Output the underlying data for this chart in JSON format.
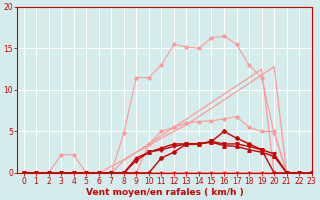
{
  "x": [
    0,
    1,
    2,
    3,
    4,
    5,
    6,
    7,
    8,
    9,
    10,
    11,
    12,
    13,
    14,
    15,
    16,
    17,
    18,
    19,
    20,
    21,
    22,
    23
  ],
  "series": [
    {
      "y": [
        0,
        0,
        0,
        0,
        0,
        0,
        0,
        0,
        0,
        0,
        0,
        0,
        0,
        0,
        0,
        0,
        0,
        0,
        0,
        0,
        0,
        0,
        0,
        0
      ],
      "color": "#ff0000",
      "marker": "o",
      "lw": 1.0,
      "ms": 1.5,
      "zorder": 3
    },
    {
      "y": [
        0,
        0,
        0,
        2.2,
        2.2,
        0,
        0,
        0,
        0,
        0,
        0,
        0,
        0,
        0,
        0,
        0,
        0,
        0,
        0,
        0,
        0,
        0,
        0,
        0
      ],
      "color": "#ff9999",
      "marker": "o",
      "lw": 0.8,
      "ms": 2.0,
      "zorder": 2
    },
    {
      "y": [
        0,
        0,
        0,
        0,
        0,
        0,
        0,
        0,
        4.8,
        11.5,
        11.5,
        13.0,
        15.5,
        15.2,
        15.0,
        16.3,
        16.5,
        15.5,
        13.0,
        11.5,
        4.8,
        0,
        0,
        0
      ],
      "color": "#ff9999",
      "marker": "o",
      "lw": 0.8,
      "ms": 2.0,
      "zorder": 2
    },
    {
      "y": [
        0,
        0,
        0,
        0,
        0,
        0,
        0,
        0,
        0,
        0,
        3.5,
        5.0,
        5.5,
        6.0,
        6.2,
        6.3,
        6.5,
        6.8,
        5.5,
        5.0,
        5.0,
        0,
        0,
        0
      ],
      "color": "#ff9999",
      "marker": "o",
      "lw": 0.8,
      "ms": 2.0,
      "zorder": 2
    },
    {
      "y": [
        0,
        0,
        0,
        0,
        0,
        0,
        0,
        0.8,
        1.6,
        2.5,
        3.3,
        4.2,
        5.0,
        5.8,
        6.8,
        7.8,
        8.8,
        9.8,
        10.8,
        11.8,
        12.8,
        0,
        0,
        0
      ],
      "color": "#ff9999",
      "marker": null,
      "lw": 0.9,
      "ms": 0,
      "zorder": 2
    },
    {
      "y": [
        0,
        0,
        0,
        0,
        0,
        0,
        0,
        0,
        1.5,
        2.5,
        3.5,
        4.5,
        5.5,
        6.5,
        7.5,
        8.5,
        9.5,
        10.5,
        11.5,
        12.5,
        0,
        0,
        0,
        0
      ],
      "color": "#ff9999",
      "marker": null,
      "lw": 0.9,
      "ms": 0,
      "zorder": 2
    },
    {
      "y": [
        0,
        0,
        0,
        0,
        0,
        0,
        0,
        0,
        0,
        1.5,
        2.5,
        2.8,
        3.2,
        3.5,
        3.5,
        3.8,
        3.5,
        3.5,
        3.2,
        2.8,
        2.3,
        0,
        0,
        0
      ],
      "color": "#cc0000",
      "marker": "v",
      "lw": 1.0,
      "ms": 2.5,
      "zorder": 4
    },
    {
      "y": [
        0,
        0,
        0,
        0,
        0,
        0,
        0,
        0,
        0,
        0,
        0,
        1.8,
        2.5,
        3.5,
        3.5,
        3.8,
        5.0,
        4.2,
        3.5,
        2.8,
        0,
        0,
        0,
        0
      ],
      "color": "#cc0000",
      "marker": "P",
      "lw": 1.0,
      "ms": 2.5,
      "zorder": 4
    },
    {
      "y": [
        0,
        0,
        0,
        0,
        0,
        0,
        0,
        0,
        0,
        1.8,
        2.5,
        3.0,
        3.5,
        3.5,
        3.5,
        3.7,
        3.3,
        3.2,
        2.8,
        2.5,
        2.0,
        0,
        0,
        0
      ],
      "color": "#cc0000",
      "marker": "^",
      "lw": 1.0,
      "ms": 2.5,
      "zorder": 4
    }
  ],
  "xlim": [
    -0.5,
    23
  ],
  "ylim": [
    0,
    20
  ],
  "yticks": [
    0,
    5,
    10,
    15,
    20
  ],
  "xticks": [
    0,
    1,
    2,
    3,
    4,
    5,
    6,
    7,
    8,
    9,
    10,
    11,
    12,
    13,
    14,
    15,
    16,
    17,
    18,
    19,
    20,
    21,
    22,
    23
  ],
  "xlabel": "Vent moyen/en rafales ( km/h )",
  "bg_color": "#d4ecec",
  "grid_color": "#ffffff",
  "axis_color": "#cc0000",
  "tick_color": "#cc0000",
  "xlabel_fontsize": 6.5,
  "tick_fontsize": 5.5
}
